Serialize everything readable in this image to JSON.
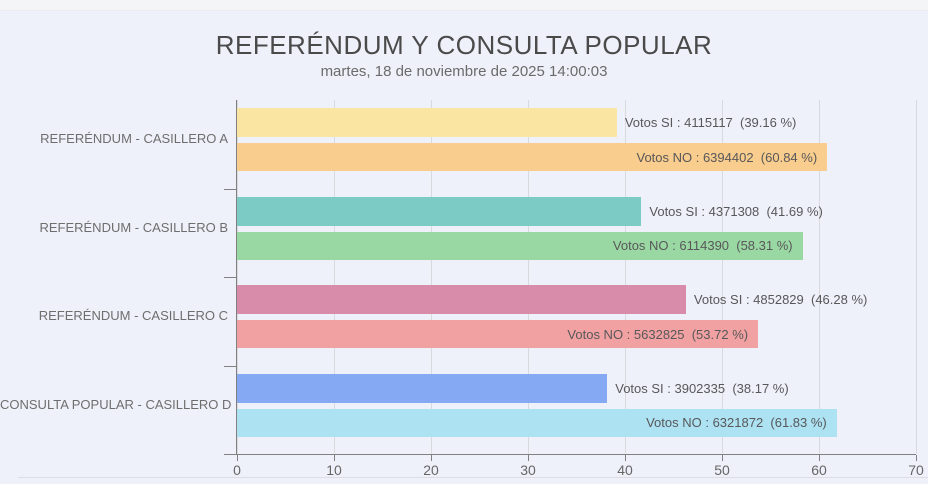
{
  "header": {
    "title": "REFERÉNDUM Y CONSULTA POPULAR",
    "subtitle": "martes, 18 de noviembre de 2025 14:00:03"
  },
  "chart_data": {
    "type": "bar",
    "orientation": "horizontal",
    "title": "REFERÉNDUM Y CONSULTA POPULAR",
    "subtitle": "martes, 18 de noviembre de 2025 14:00:03",
    "categories": [
      "REFERÉNDUM - CASILLERO A",
      "REFERÉNDUM - CASILLERO B",
      "REFERÉNDUM - CASILLERO C",
      "CONSULTA POPULAR - CASILLERO D"
    ],
    "series": [
      {
        "name": "Votos SI",
        "values": [
          39.16,
          41.69,
          46.28,
          38.17
        ],
        "votes": [
          4115117,
          4371308,
          4852829,
          3902335
        ]
      },
      {
        "name": "Votos NO",
        "values": [
          60.84,
          58.31,
          53.72,
          61.83
        ],
        "votes": [
          6394402,
          6114390,
          5632825,
          6321872
        ]
      }
    ],
    "xlabel": "",
    "ylabel": "",
    "xlim": [
      0,
      70
    ],
    "x_ticks": [
      0,
      10,
      20,
      30,
      40,
      50,
      60,
      70
    ],
    "grid": true,
    "legend": "none"
  },
  "groups": [
    {
      "category": "REFERÉNDUM - CASILLERO A",
      "bars": [
        {
          "series": "Votos SI",
          "value": 39.16,
          "votes": 4115117,
          "label": "Votos SI : 4115117  (39.16 %)",
          "color": "#fae5a3",
          "label_position": "outside"
        },
        {
          "series": "Votos NO",
          "value": 60.84,
          "votes": 6394402,
          "label": "Votos NO : 6394402  (60.84 %)",
          "color": "#f8cd8d",
          "label_position": "inside"
        }
      ]
    },
    {
      "category": "REFERÉNDUM - CASILLERO B",
      "bars": [
        {
          "series": "Votos SI",
          "value": 41.69,
          "votes": 4371308,
          "label": "Votos SI : 4371308  (41.69 %)",
          "color": "#7ccbc4",
          "label_position": "outside"
        },
        {
          "series": "Votos NO",
          "value": 58.31,
          "votes": 6114390,
          "label": "Votos NO : 6114390  (58.31 %)",
          "color": "#9ad8a3",
          "label_position": "inside"
        }
      ]
    },
    {
      "category": "REFERÉNDUM - CASILLERO C",
      "bars": [
        {
          "series": "Votos SI",
          "value": 46.28,
          "votes": 4852829,
          "label": "Votos SI : 4852829  (46.28 %)",
          "color": "#d88ca9",
          "label_position": "outside"
        },
        {
          "series": "Votos NO",
          "value": 53.72,
          "votes": 5632825,
          "label": "Votos NO : 5632825  (53.72 %)",
          "color": "#f2a1a2",
          "label_position": "inside"
        }
      ]
    },
    {
      "category": "CONSULTA POPULAR - CASILLERO D",
      "bars": [
        {
          "series": "Votos SI",
          "value": 38.17,
          "votes": 3902335,
          "label": "Votos SI : 3902335  (38.17 %)",
          "color": "#85aaf3",
          "label_position": "outside"
        },
        {
          "series": "Votos NO",
          "value": 61.83,
          "votes": 6321872,
          "label": "Votos NO : 6321872  (61.83 %)",
          "color": "#ade2f2",
          "label_position": "inside"
        }
      ]
    }
  ],
  "colors": {
    "background": "#eef1f9",
    "top_strip": "#f4f5f7",
    "axis": "#808080",
    "gridline": "#d8dade",
    "title_text": "#4a4a4a",
    "subtitle_text": "#6b6b6b",
    "category_text": "#6e6e6e",
    "bar_label_text": "#58585a",
    "tick_label_text": "#666666"
  }
}
